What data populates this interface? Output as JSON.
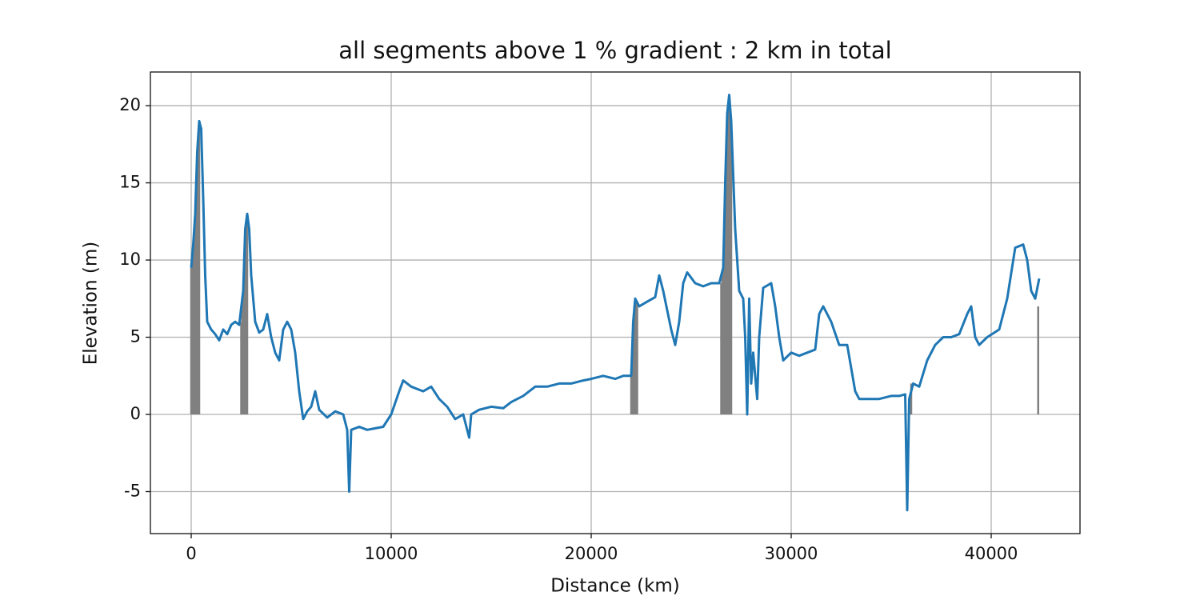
{
  "chart_data": {
    "type": "line",
    "title": "all segments above 1 % gradient : 2 km in total",
    "xlabel": "Distance (km)",
    "ylabel": "Elevation (m)",
    "xlim": [
      -2040,
      44440
    ],
    "ylim": [
      -7.72,
      22.18
    ],
    "xticks": [
      0,
      10000,
      20000,
      30000,
      40000
    ],
    "yticks": [
      -5,
      0,
      5,
      10,
      15,
      20
    ],
    "grid": true,
    "highlights": {
      "color": "#808080",
      "x": [
        0,
        50,
        100,
        150,
        200,
        250,
        300,
        350,
        400,
        2500,
        2550,
        2600,
        2650,
        2700,
        2750,
        2800,
        22000,
        22050,
        22100,
        22150,
        22200,
        22250,
        22300,
        26500,
        26550,
        26600,
        26650,
        26700,
        26750,
        26800,
        26850,
        26900,
        26950,
        27000,
        35900,
        36000,
        42350
      ],
      "values": [
        9.5,
        10,
        11,
        12,
        13,
        15,
        17,
        18,
        19,
        6,
        7,
        8,
        10,
        12,
        12.5,
        13,
        2.5,
        4,
        6,
        7,
        7.5,
        7.3,
        7.1,
        8.5,
        9,
        9.5,
        12,
        15,
        17,
        19.5,
        20,
        20.7,
        20,
        19,
        1,
        2,
        7
      ]
    },
    "series": [
      {
        "color": "#1f77b4",
        "x": [
          0,
          100,
          200,
          300,
          400,
          500,
          600,
          700,
          800,
          1000,
          1200,
          1400,
          1600,
          1800,
          2000,
          2200,
          2400,
          2600,
          2700,
          2800,
          2900,
          3000,
          3200,
          3400,
          3600,
          3800,
          4000,
          4200,
          4400,
          4600,
          4800,
          5000,
          5200,
          5400,
          5600,
          5800,
          6000,
          6200,
          6400,
          6800,
          7200,
          7600,
          7800,
          7900,
          8000,
          8400,
          8800,
          9200,
          9600,
          10000,
          10400,
          10600,
          11000,
          11600,
          12000,
          12400,
          12800,
          13200,
          13600,
          13900,
          14000,
          14400,
          15000,
          15600,
          16000,
          16600,
          17200,
          17800,
          18400,
          19000,
          19600,
          20000,
          20600,
          21200,
          21600,
          22000,
          22100,
          22200,
          22400,
          22800,
          23200,
          23400,
          23600,
          24000,
          24200,
          24400,
          24600,
          24800,
          25200,
          25600,
          26000,
          26400,
          26600,
          26700,
          26800,
          26900,
          27000,
          27200,
          27400,
          27600,
          27700,
          27800,
          27900,
          28000,
          28100,
          28200,
          28300,
          28400,
          28600,
          29000,
          29200,
          29400,
          29600,
          30000,
          30400,
          30800,
          31200,
          31400,
          31600,
          32000,
          32400,
          32800,
          33000,
          33200,
          33400,
          34000,
          34400,
          35000,
          35400,
          35700,
          35800,
          35900,
          36100,
          36400,
          36800,
          37200,
          37600,
          38000,
          38400,
          38800,
          39000,
          39200,
          39400,
          39800,
          40400,
          40800,
          41200,
          41600,
          41800,
          42000,
          42200,
          42400
        ],
        "values": [
          9.5,
          11,
          13,
          17,
          19,
          18.5,
          14,
          9,
          6,
          5.5,
          5.2,
          4.8,
          5.5,
          5.2,
          5.8,
          6,
          5.8,
          8,
          12,
          13,
          12,
          9,
          6,
          5.3,
          5.5,
          6.5,
          5,
          4,
          3.5,
          5.5,
          6,
          5.5,
          4,
          1.5,
          -0.3,
          0.2,
          0.5,
          1.5,
          0.3,
          -0.2,
          0.2,
          0,
          -1,
          -5,
          -1,
          -0.8,
          -1,
          -0.9,
          -0.8,
          0,
          1.5,
          2.2,
          1.8,
          1.5,
          1.8,
          1,
          0.5,
          -0.3,
          0,
          -1.5,
          0,
          0.3,
          0.5,
          0.4,
          0.8,
          1.2,
          1.8,
          1.8,
          2,
          2,
          2.2,
          2.3,
          2.5,
          2.3,
          2.5,
          2.5,
          6,
          7.5,
          7,
          7.3,
          7.6,
          9,
          8,
          5.5,
          4.5,
          6,
          8.5,
          9.2,
          8.5,
          8.3,
          8.5,
          8.5,
          9.5,
          15,
          19.5,
          20.7,
          19,
          12,
          8,
          7.5,
          5,
          0,
          7.5,
          2,
          4,
          2.5,
          1,
          5,
          8.2,
          8.5,
          7,
          5,
          3.5,
          4,
          3.8,
          4,
          4.2,
          6.5,
          7,
          6,
          4.5,
          4.5,
          3,
          1.5,
          1,
          1,
          1,
          1.2,
          1.2,
          1.3,
          -6.2,
          1,
          2,
          1.8,
          3.5,
          4.5,
          5,
          5,
          5.2,
          6.5,
          7,
          5,
          4.5,
          5,
          5.5,
          7.5,
          10.8,
          11,
          10,
          8,
          7.5,
          8.8
        ]
      }
    ]
  }
}
